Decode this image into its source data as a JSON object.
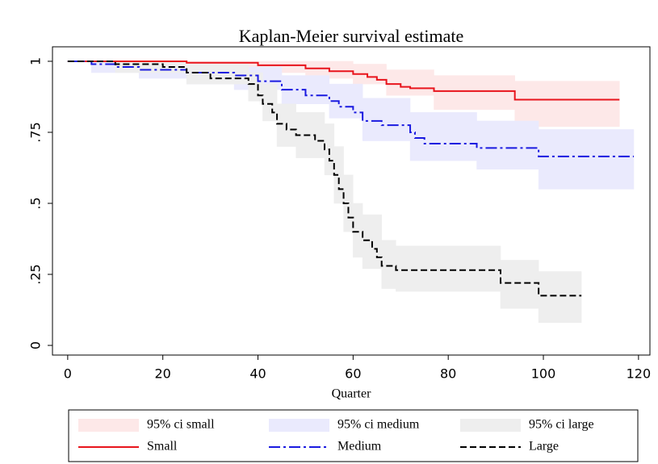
{
  "chart_data": {
    "type": "step",
    "title": "Kaplan-Meier survival estimate",
    "x_label": "Quarter",
    "xlim": [
      -3.2,
      122.4
    ],
    "ylim": [
      -0.034,
      1.051
    ],
    "xticks": [
      0,
      20,
      40,
      60,
      80,
      100,
      120
    ],
    "yticks": [
      0,
      {
        "value": 0.25,
        "label": ".25"
      },
      {
        "value": 0.5,
        "label": ".5"
      },
      {
        "value": 0.75,
        "label": ".75"
      },
      1
    ],
    "bands": [
      {
        "name": "95% ci small",
        "color": "#fde8e8",
        "x": [
          0,
          20,
          30,
          40,
          50,
          60,
          67,
          77,
          94,
          116
        ],
        "lower": [
          1,
          0.99,
          0.98,
          0.96,
          0.94,
          0.92,
          0.88,
          0.83,
          0.77,
          0.77
        ],
        "upper": [
          1,
          1,
          1,
          1,
          1,
          0.99,
          0.97,
          0.95,
          0.93,
          0.93
        ]
      },
      {
        "name": "95% ci medium",
        "color": "#eaeafd",
        "x": [
          0,
          5,
          15,
          25,
          35,
          45,
          55,
          62,
          72,
          86,
          99,
          119
        ],
        "lower": [
          1,
          0.96,
          0.94,
          0.92,
          0.9,
          0.85,
          0.8,
          0.72,
          0.65,
          0.62,
          0.55,
          0.55
        ],
        "upper": [
          1,
          1,
          0.99,
          0.98,
          0.98,
          0.95,
          0.92,
          0.87,
          0.82,
          0.79,
          0.76,
          0.76
        ]
      },
      {
        "name": "95% ci large",
        "color": "#eeeeee",
        "x": [
          0,
          10,
          25,
          38,
          41,
          44,
          48,
          54,
          56,
          58,
          60,
          62,
          66,
          69,
          91,
          99,
          108
        ],
        "lower": [
          1,
          0.96,
          0.92,
          0.86,
          0.79,
          0.7,
          0.66,
          0.6,
          0.5,
          0.4,
          0.31,
          0.27,
          0.2,
          0.19,
          0.13,
          0.08,
          0.08
        ],
        "upper": [
          1,
          1,
          0.99,
          0.96,
          0.92,
          0.85,
          0.82,
          0.78,
          0.7,
          0.6,
          0.5,
          0.46,
          0.37,
          0.35,
          0.3,
          0.26,
          0.26
        ]
      }
    ],
    "series": [
      {
        "name": "Small",
        "color": "#e8141c",
        "dash": "solid",
        "x": [
          0,
          25,
          40,
          50,
          55,
          60,
          63,
          65,
          67,
          70,
          72,
          77,
          94,
          116
        ],
        "values": [
          1,
          0.995,
          0.986,
          0.975,
          0.965,
          0.955,
          0.945,
          0.935,
          0.92,
          0.91,
          0.905,
          0.895,
          0.865,
          0.865
        ]
      },
      {
        "name": "Medium",
        "color": "#1a1ae0",
        "dash": "dashdot",
        "x": [
          0,
          5,
          10,
          15,
          25,
          35,
          40,
          45,
          50,
          55,
          57,
          60,
          62,
          66,
          72,
          73,
          75,
          86,
          99,
          119
        ],
        "values": [
          1,
          0.99,
          0.98,
          0.97,
          0.96,
          0.95,
          0.93,
          0.9,
          0.88,
          0.86,
          0.84,
          0.82,
          0.79,
          0.775,
          0.75,
          0.73,
          0.71,
          0.695,
          0.665,
          0.665
        ]
      },
      {
        "name": "Large",
        "color": "#000000",
        "dash": "dash",
        "x": [
          0,
          10,
          20,
          25,
          30,
          38,
          40,
          41,
          43,
          44,
          46,
          48,
          52,
          54,
          55,
          56,
          57,
          58,
          59,
          60,
          62,
          64,
          65,
          66,
          69,
          91,
          99,
          108
        ],
        "values": [
          1,
          0.99,
          0.98,
          0.96,
          0.94,
          0.92,
          0.88,
          0.85,
          0.82,
          0.78,
          0.76,
          0.74,
          0.72,
          0.69,
          0.65,
          0.6,
          0.55,
          0.5,
          0.45,
          0.4,
          0.37,
          0.34,
          0.31,
          0.28,
          0.265,
          0.22,
          0.175,
          0.175
        ]
      }
    ]
  }
}
